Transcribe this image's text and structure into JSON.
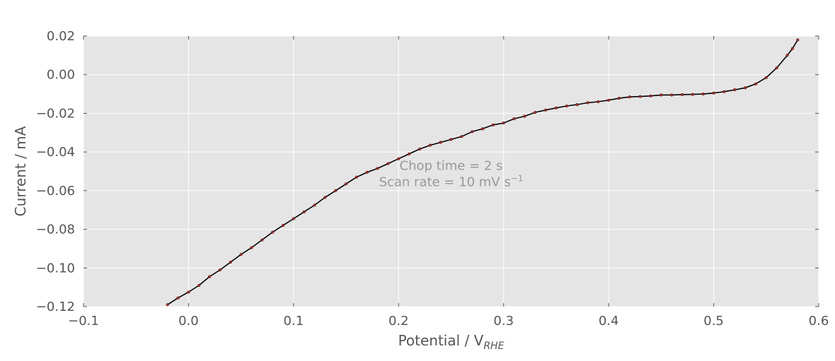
{
  "chart_data": {
    "type": "scatter",
    "xlabel": "Potential / V",
    "xlabel_sub": "RHE",
    "ylabel": "Current / mA",
    "xlim": [
      -0.1,
      0.6
    ],
    "ylim": [
      -0.12,
      0.02
    ],
    "x_ticks": [
      -0.1,
      0.0,
      0.1,
      0.2,
      0.3,
      0.4,
      0.5,
      0.6
    ],
    "x_tick_labels": [
      "−0.1",
      "0.0",
      "0.1",
      "0.2",
      "0.3",
      "0.4",
      "0.5",
      "0.6"
    ],
    "y_ticks": [
      0.02,
      0.0,
      -0.02,
      -0.04,
      -0.06,
      -0.08,
      -0.1,
      -0.12
    ],
    "y_tick_labels": [
      "0.02",
      "0.00",
      "−0.02",
      "−0.04",
      "−0.06",
      "−0.08",
      "−0.10",
      "−0.12"
    ],
    "grid": true,
    "background": "#e5e5e5",
    "annotation": {
      "line1": "Chop time = 2 s",
      "line2": "Scan rate = 10 mV s",
      "line2_sup": "−1",
      "x": 0.25,
      "y": -0.05
    },
    "series": [
      {
        "marker_color": "#d62728",
        "line_color": "#000000",
        "x": [
          -0.02,
          -0.01,
          0.0,
          0.01,
          0.02,
          0.03,
          0.04,
          0.05,
          0.06,
          0.07,
          0.08,
          0.09,
          0.1,
          0.11,
          0.12,
          0.13,
          0.14,
          0.15,
          0.16,
          0.17,
          0.18,
          0.19,
          0.2,
          0.21,
          0.22,
          0.23,
          0.24,
          0.25,
          0.26,
          0.27,
          0.28,
          0.29,
          0.3,
          0.31,
          0.32,
          0.33,
          0.34,
          0.35,
          0.36,
          0.37,
          0.38,
          0.39,
          0.4,
          0.41,
          0.42,
          0.43,
          0.44,
          0.45,
          0.46,
          0.47,
          0.48,
          0.49,
          0.5,
          0.51,
          0.52,
          0.53,
          0.54,
          0.55,
          0.56,
          0.57,
          0.575,
          0.58
        ],
        "y": [
          -0.119,
          -0.1155,
          -0.1125,
          -0.109,
          -0.1045,
          -0.101,
          -0.097,
          -0.093,
          -0.0895,
          -0.0855,
          -0.0815,
          -0.078,
          -0.0745,
          -0.071,
          -0.0675,
          -0.0635,
          -0.06,
          -0.0565,
          -0.053,
          -0.0505,
          -0.0485,
          -0.046,
          -0.0435,
          -0.041,
          -0.0385,
          -0.0365,
          -0.035,
          -0.0335,
          -0.032,
          -0.0295,
          -0.028,
          -0.026,
          -0.025,
          -0.0228,
          -0.0215,
          -0.0195,
          -0.0183,
          -0.0172,
          -0.0162,
          -0.0155,
          -0.0145,
          -0.014,
          -0.0132,
          -0.0122,
          -0.0115,
          -0.0113,
          -0.011,
          -0.0105,
          -0.0105,
          -0.0103,
          -0.0102,
          -0.01,
          -0.0095,
          -0.0088,
          -0.0078,
          -0.0068,
          -0.0048,
          -0.0015,
          0.0035,
          0.01,
          0.0135,
          0.018
        ]
      }
    ]
  }
}
